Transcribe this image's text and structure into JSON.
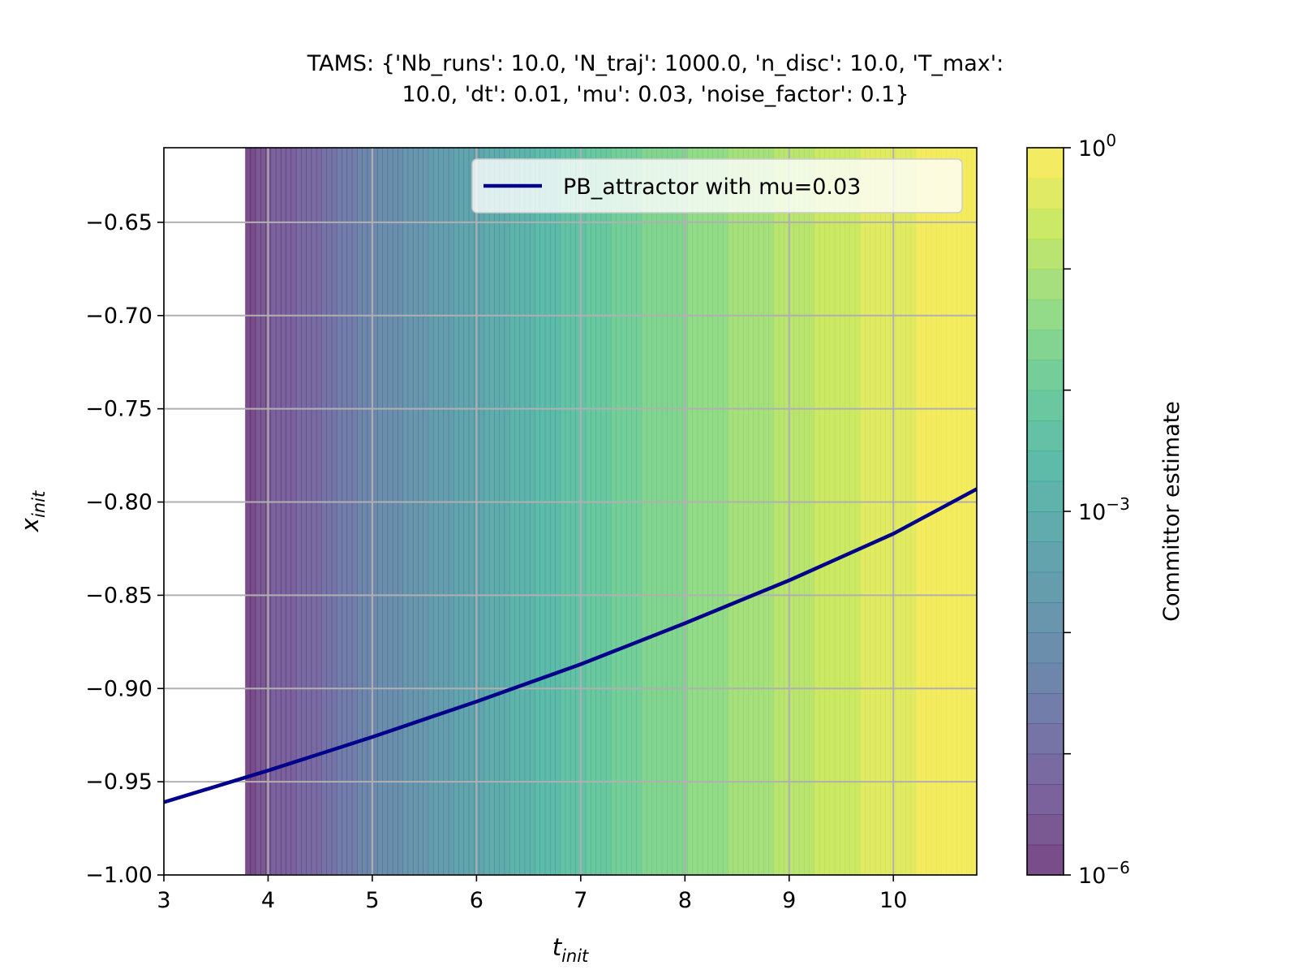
{
  "chart_data": {
    "type": "heatmap",
    "title_lines": [
      "TAMS: {'Nb_runs': 10.0, 'N_traj': 1000.0, 'n_disc': 10.0, 'T_max':",
      "10.0, 'dt': 0.01, 'mu': 0.03, 'noise_factor': 0.1}"
    ],
    "xlabel_base": "t",
    "xlabel_sub": "init",
    "ylabel_base": "x",
    "ylabel_sub": "init",
    "xlim": [
      3,
      10.8
    ],
    "ylim": [
      -1.0,
      -0.61
    ],
    "x_ticks": [
      3,
      4,
      5,
      6,
      7,
      8,
      9,
      10
    ],
    "x_tick_labels": [
      "3",
      "4",
      "5",
      "6",
      "7",
      "8",
      "9",
      "10"
    ],
    "y_ticks": [
      -0.65,
      -0.7,
      -0.75,
      -0.8,
      -0.85,
      -0.9,
      -0.95,
      -1.0
    ],
    "y_tick_labels": [
      "−0.65",
      "−0.70",
      "−0.75",
      "−0.80",
      "−0.85",
      "−0.90",
      "−0.95",
      "−1.00"
    ],
    "grid": true,
    "colormap": "viridis",
    "fill_alpha": 0.72,
    "colorbar": {
      "label": "Committor estimate",
      "scale": "log",
      "range_exponent": [
        -6,
        0
      ],
      "labeled_ticks": [
        {
          "exponent": 0,
          "base": "10",
          "exp_text": "0"
        },
        {
          "exponent": -3,
          "base": "10",
          "exp_text": "−3"
        },
        {
          "exponent": -6,
          "base": "10",
          "exp_text": "−6"
        }
      ],
      "minor_tick_exponents": [
        -1,
        -2,
        -4,
        -5
      ]
    },
    "committor_profile": {
      "description": "log10 committor versus t_init (approximately independent of x_init)",
      "t": [
        3.8,
        4.0,
        4.5,
        5.0,
        5.5,
        6.0,
        6.5,
        7.0,
        7.5,
        8.0,
        8.5,
        9.0,
        9.5,
        10.0,
        10.5,
        10.8
      ],
      "log10_value": [
        -6.0,
        -5.5,
        -5.0,
        -4.3,
        -3.8,
        -3.3,
        -2.8,
        -2.3,
        -1.8,
        -1.5,
        -1.2,
        -0.9,
        -0.6,
        -0.35,
        -0.1,
        0.0
      ]
    },
    "series": [
      {
        "name": "PB_attractor with mu=0.03",
        "color": "#00008b",
        "x": [
          3.0,
          4.0,
          5.0,
          6.0,
          7.0,
          8.0,
          9.0,
          10.0,
          10.8
        ],
        "y": [
          -0.961,
          -0.944,
          -0.926,
          -0.907,
          -0.887,
          -0.865,
          -0.842,
          -0.817,
          -0.793
        ]
      }
    ],
    "legend_position": "upper right"
  }
}
